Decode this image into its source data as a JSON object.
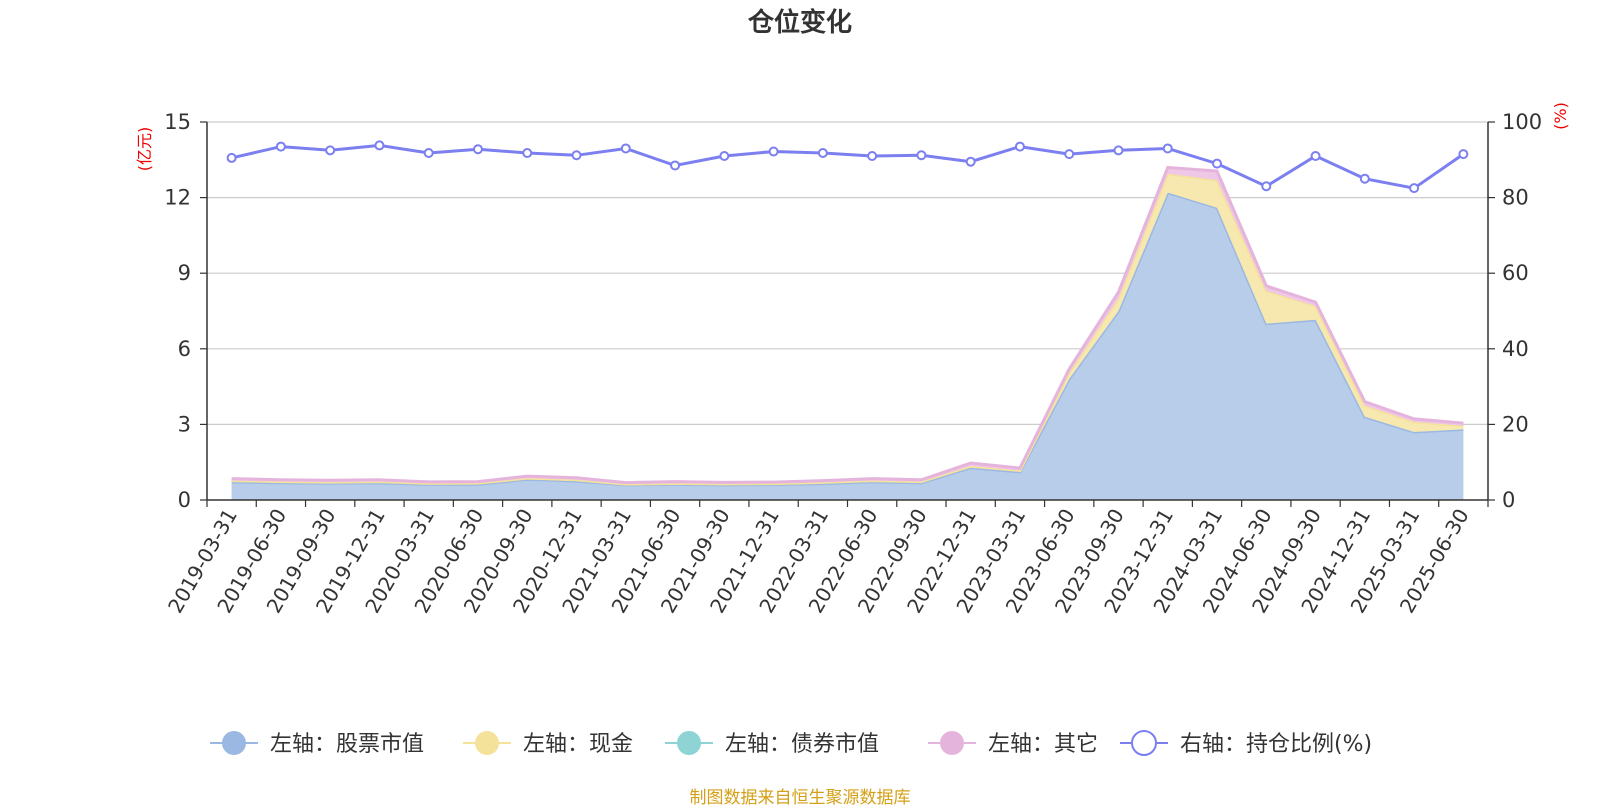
{
  "page": {
    "title": "仓位变化",
    "footer": "制图数据来自恒生聚源数据库"
  },
  "chart_data": {
    "type": "area",
    "title": "仓位变化",
    "categories": [
      "2019-03-31",
      "2019-06-30",
      "2019-09-30",
      "2019-12-31",
      "2020-03-31",
      "2020-06-30",
      "2020-09-30",
      "2020-12-31",
      "2021-03-31",
      "2021-06-30",
      "2021-09-30",
      "2021-12-31",
      "2022-03-31",
      "2022-06-30",
      "2022-09-30",
      "2022-12-31",
      "2023-03-31",
      "2023-06-30",
      "2023-09-30",
      "2023-12-31",
      "2024-03-31",
      "2024-06-30",
      "2024-09-30",
      "2024-12-31",
      "2025-03-31",
      "2025-06-30"
    ],
    "left_axis": {
      "label": "(亿元)",
      "ylim": [
        0,
        15
      ],
      "ticks": [
        0,
        3,
        6,
        9,
        12,
        15
      ]
    },
    "right_axis": {
      "label": "(%)",
      "ylim": [
        0,
        100
      ],
      "ticks": [
        0,
        20,
        40,
        60,
        80,
        100
      ]
    },
    "grid": true,
    "legend_position": "bottom",
    "series": [
      {
        "name": "左轴：股票市值",
        "axis": "left",
        "kind": "area",
        "stack": true,
        "color": "#9ab8e2",
        "fill": "#b8cdea",
        "values": [
          0.72,
          0.68,
          0.67,
          0.68,
          0.62,
          0.62,
          0.82,
          0.75,
          0.6,
          0.62,
          0.6,
          0.61,
          0.65,
          0.72,
          0.68,
          1.28,
          1.12,
          4.8,
          7.5,
          12.2,
          11.6,
          7.0,
          7.15,
          3.3,
          2.7,
          2.8
        ]
      },
      {
        "name": "左轴：现金",
        "axis": "left",
        "kind": "area",
        "stack": true,
        "color": "#f5e29a",
        "fill": "#f7e8b0",
        "values": [
          0.05,
          0.05,
          0.04,
          0.05,
          0.04,
          0.05,
          0.05,
          0.05,
          0.03,
          0.04,
          0.04,
          0.04,
          0.05,
          0.05,
          0.05,
          0.07,
          0.05,
          0.25,
          0.5,
          0.75,
          1.1,
          1.3,
          0.55,
          0.45,
          0.4,
          0.15
        ]
      },
      {
        "name": "左轴：债券市值",
        "axis": "left",
        "kind": "area",
        "stack": true,
        "color": "#8ed4d4",
        "fill": "#a8dede",
        "values": [
          0,
          0,
          0,
          0,
          0,
          0,
          0,
          0,
          0,
          0,
          0,
          0,
          0,
          0,
          0,
          0,
          0,
          0,
          0,
          0,
          0,
          0,
          0,
          0,
          0,
          0
        ]
      },
      {
        "name": "左轴：其它",
        "axis": "left",
        "kind": "area",
        "stack": true,
        "color": "#e5b4dc",
        "fill": "#efc7e7",
        "values": [
          0.08,
          0.07,
          0.07,
          0.07,
          0.06,
          0.06,
          0.08,
          0.08,
          0.06,
          0.07,
          0.06,
          0.06,
          0.07,
          0.08,
          0.07,
          0.12,
          0.1,
          0.15,
          0.25,
          0.25,
          0.35,
          0.2,
          0.15,
          0.15,
          0.12,
          0.1
        ]
      },
      {
        "name": "右轴：持仓比例(%)",
        "axis": "right",
        "kind": "line",
        "color": "#7b7ff0",
        "values": [
          90.5,
          93.5,
          92.5,
          93.8,
          91.8,
          92.8,
          91.8,
          91.2,
          93.0,
          88.5,
          91.0,
          92.2,
          91.8,
          91.0,
          91.2,
          89.5,
          93.5,
          91.5,
          92.5,
          93.0,
          89.0,
          83.0,
          91.0,
          85.0,
          82.5,
          91.5
        ]
      }
    ]
  }
}
